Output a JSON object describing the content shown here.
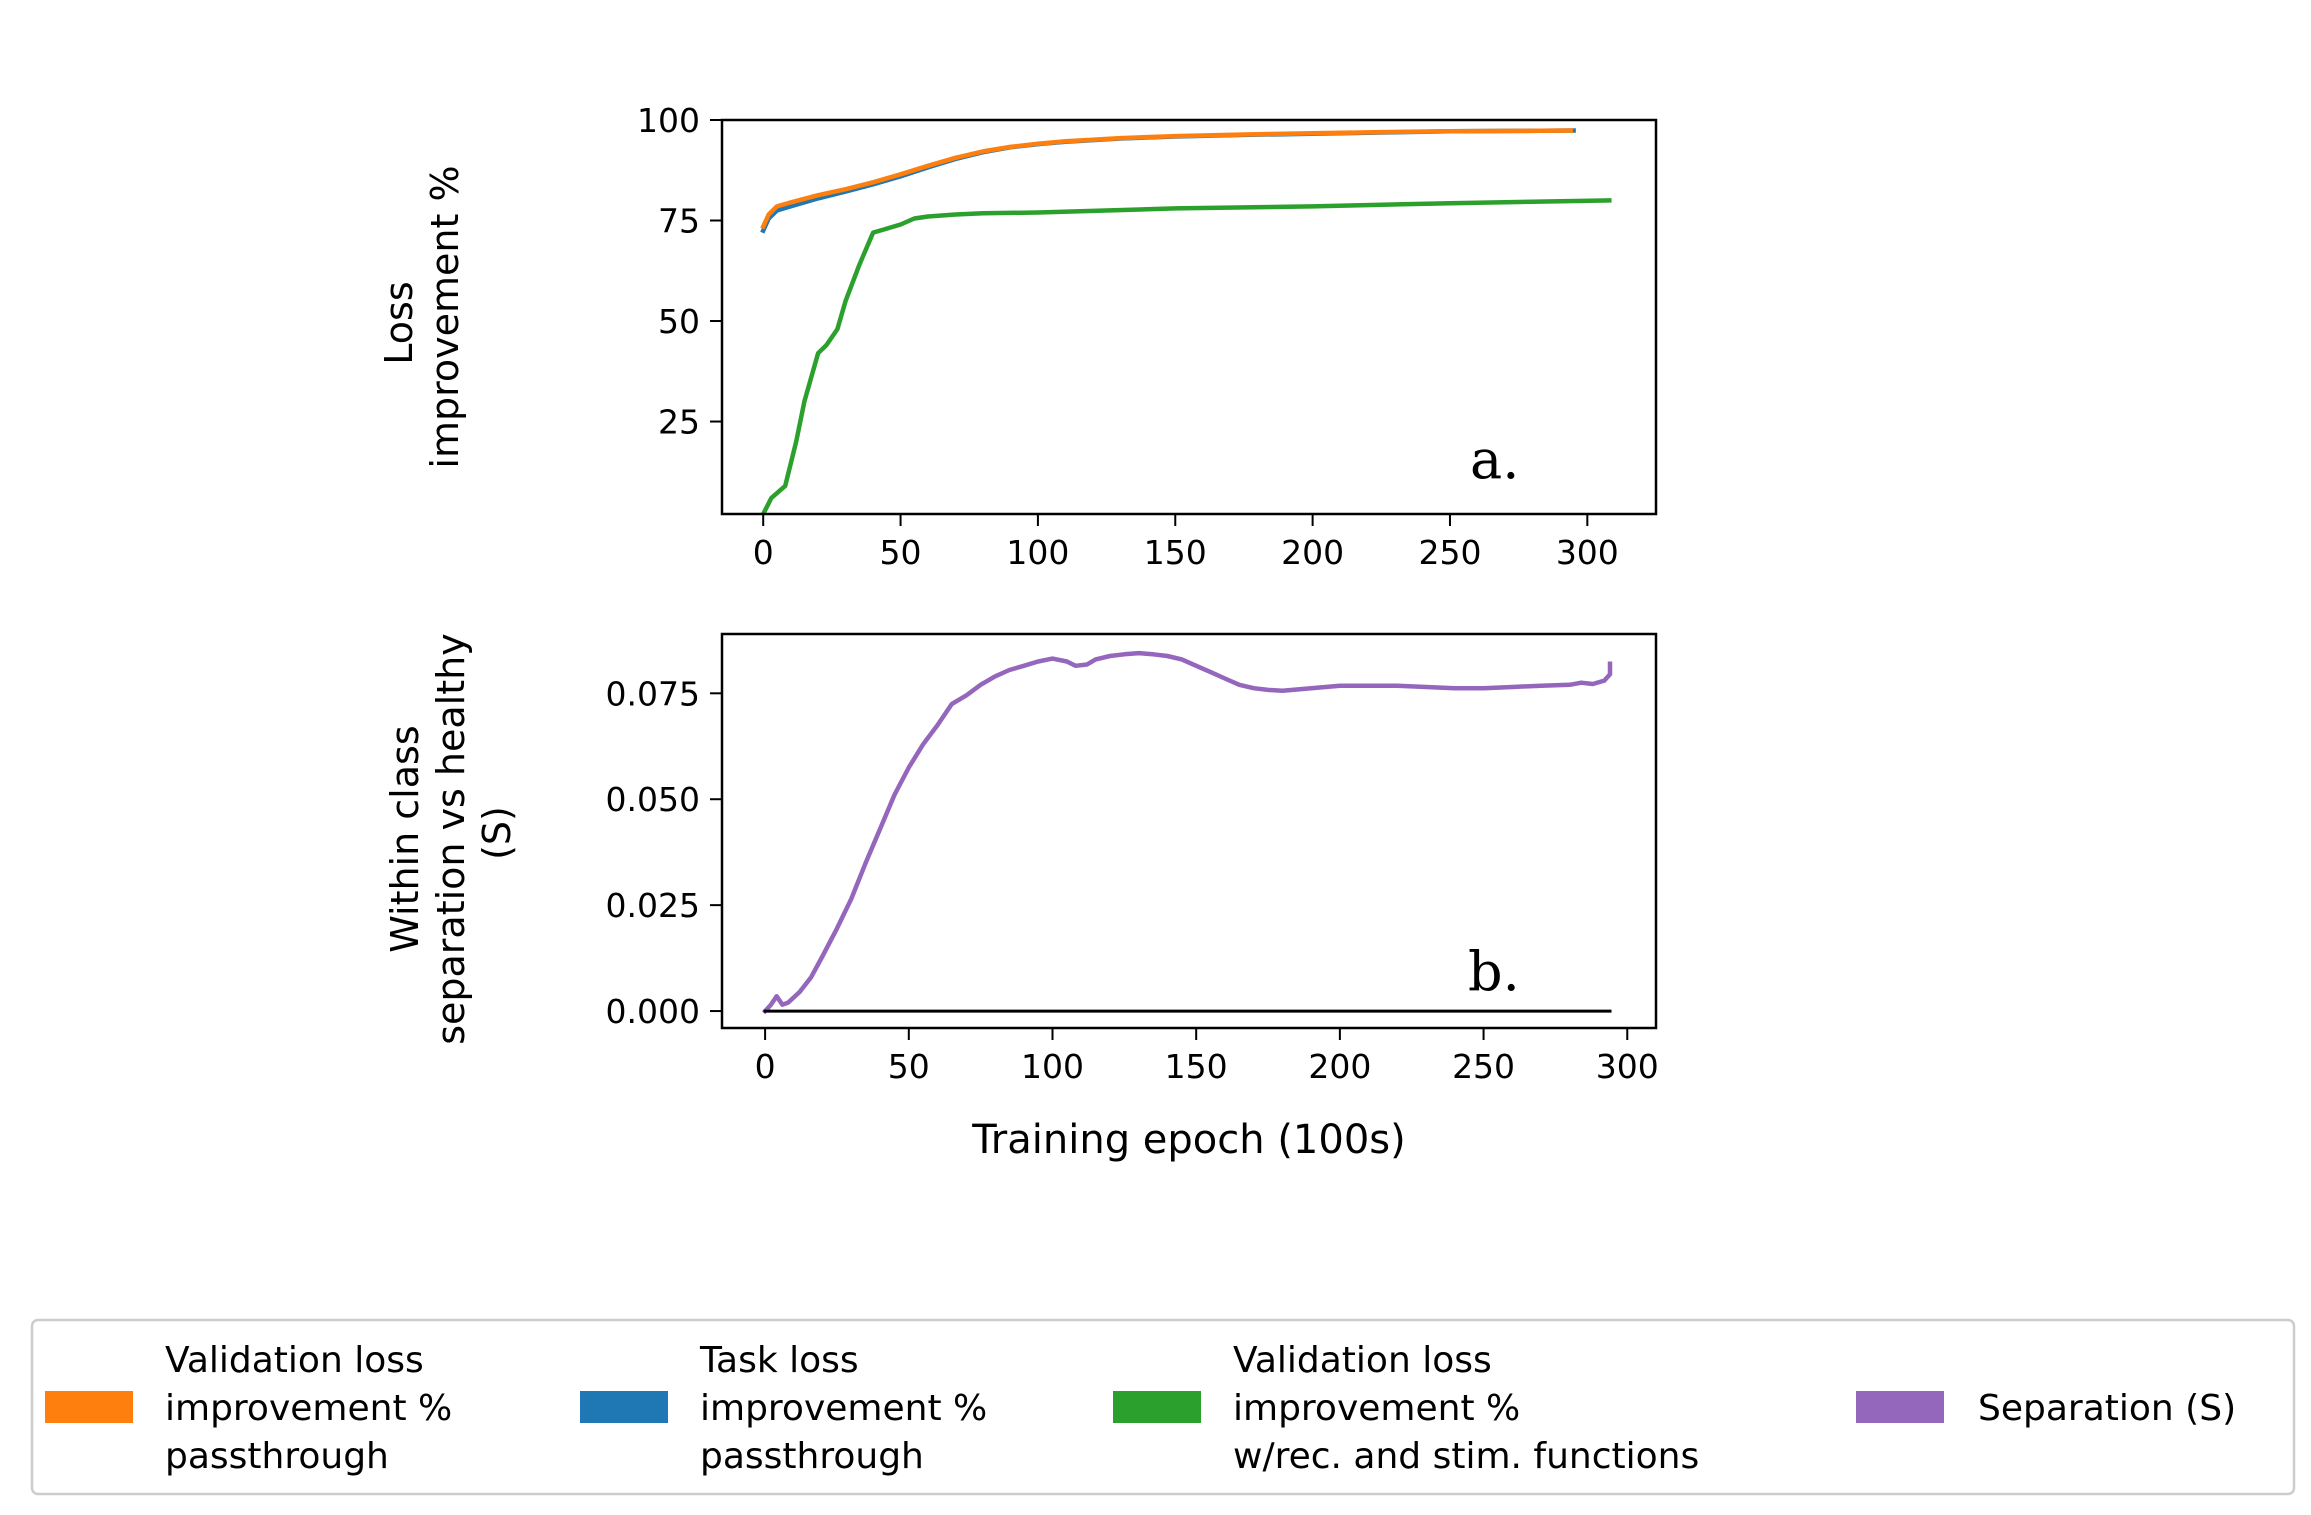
{
  "chart_data": [
    {
      "type": "line",
      "panel_label": "a.",
      "ylabel": [
        "Loss",
        "improvement %"
      ],
      "xlabel": "",
      "xlim": [
        -15,
        325
      ],
      "ylim": [
        2,
        100
      ],
      "xticks": [
        0,
        50,
        100,
        150,
        200,
        250,
        300
      ],
      "yticks": [
        25,
        50,
        75,
        100
      ],
      "series": [
        {
          "key": "task",
          "color": "#1f77b4",
          "x": [
            0,
            2,
            5,
            10,
            20,
            30,
            40,
            50,
            60,
            70,
            80,
            90,
            100,
            110,
            120,
            130,
            150,
            175,
            200,
            225,
            250,
            275,
            295
          ],
          "y": [
            72.5,
            75.5,
            77.5,
            78.5,
            80.5,
            82.2,
            84,
            86,
            88.2,
            90.3,
            92,
            93.2,
            94,
            94.6,
            95,
            95.4,
            95.9,
            96.3,
            96.6,
            96.9,
            97.2,
            97.3,
            97.4
          ]
        },
        {
          "key": "validation_passthrough",
          "color": "#ff7f0e",
          "x": [
            0,
            2,
            5,
            10,
            20,
            30,
            40,
            50,
            60,
            70,
            80,
            90,
            100,
            110,
            120,
            130,
            150,
            175,
            200,
            225,
            250,
            275,
            294
          ],
          "y": [
            73.5,
            76.5,
            78.5,
            79.5,
            81.3,
            82.8,
            84.5,
            86.5,
            88.6,
            90.6,
            92.2,
            93.3,
            94.1,
            94.7,
            95.1,
            95.5,
            96,
            96.4,
            96.7,
            97,
            97.2,
            97.3,
            97.4
          ]
        },
        {
          "key": "validation_rec_stim",
          "color": "#2ca02c",
          "x": [
            0,
            3,
            8,
            12,
            15,
            20,
            23,
            27,
            30,
            35,
            40,
            45,
            50,
            55,
            60,
            70,
            80,
            100,
            150,
            200,
            250,
            308
          ],
          "y": [
            2,
            6,
            9,
            20,
            30,
            42,
            44,
            48,
            55,
            64,
            72,
            73,
            74,
            75.5,
            76,
            76.5,
            76.8,
            77,
            78,
            78.5,
            79.3,
            80
          ]
        }
      ]
    },
    {
      "type": "line",
      "panel_label": "b.",
      "ylabel": [
        "Within class",
        "separation vs healthy",
        "(S)"
      ],
      "xlabel": "Training epoch (100s)",
      "xlim": [
        -15,
        310
      ],
      "ylim": [
        -0.004,
        0.089
      ],
      "xticks": [
        0,
        50,
        100,
        150,
        200,
        250,
        300
      ],
      "yticks": [
        0.0,
        0.025,
        0.05,
        0.075
      ],
      "ytick_labels": [
        "0.000",
        "0.025",
        "0.050",
        "0.075"
      ],
      "series": [
        {
          "key": "separation",
          "color": "#9467bd",
          "x": [
            0,
            2,
            4,
            6,
            8,
            12,
            16,
            20,
            25,
            30,
            35,
            40,
            45,
            50,
            55,
            60,
            65,
            70,
            75,
            80,
            85,
            90,
            95,
            100,
            105,
            108,
            112,
            115,
            120,
            125,
            130,
            135,
            140,
            145,
            150,
            155,
            160,
            165,
            170,
            175,
            180,
            190,
            200,
            210,
            220,
            230,
            240,
            250,
            260,
            270,
            280,
            284,
            288,
            292,
            294,
            294
          ],
          "y": [
            0,
            0.0015,
            0.0035,
            0.0015,
            0.002,
            0.0045,
            0.008,
            0.013,
            0.0195,
            0.0265,
            0.035,
            0.043,
            0.051,
            0.0575,
            0.063,
            0.0675,
            0.0725,
            0.0745,
            0.077,
            0.079,
            0.0805,
            0.0815,
            0.0825,
            0.0832,
            0.0825,
            0.0815,
            0.0818,
            0.083,
            0.0838,
            0.0842,
            0.0845,
            0.0842,
            0.0838,
            0.083,
            0.0815,
            0.08,
            0.0785,
            0.077,
            0.0762,
            0.0758,
            0.0756,
            0.0762,
            0.0768,
            0.0768,
            0.0768,
            0.0765,
            0.0762,
            0.0762,
            0.0765,
            0.0768,
            0.077,
            0.0775,
            0.0772,
            0.078,
            0.0795,
            0.082
          ]
        },
        {
          "key": "zero_line",
          "color": "#000000",
          "x": [
            0,
            294
          ],
          "y": [
            0,
            0
          ]
        }
      ]
    }
  ],
  "legend": {
    "placement": "bottom",
    "items": [
      {
        "key": "validation_passthrough",
        "color": "#ff7f0e",
        "label_lines": [
          "Validation loss",
          "improvement %",
          "passthrough"
        ]
      },
      {
        "key": "task",
        "color": "#1f77b4",
        "label_lines": [
          "Task loss",
          "improvement %",
          "passthrough"
        ]
      },
      {
        "key": "validation_rec_stim",
        "color": "#2ca02c",
        "label_lines": [
          "Validation loss",
          "improvement %",
          "w/rec. and stim. functions"
        ]
      },
      {
        "key": "separation",
        "color": "#9467bd",
        "label_lines": [
          "Separation (S)"
        ]
      }
    ]
  }
}
